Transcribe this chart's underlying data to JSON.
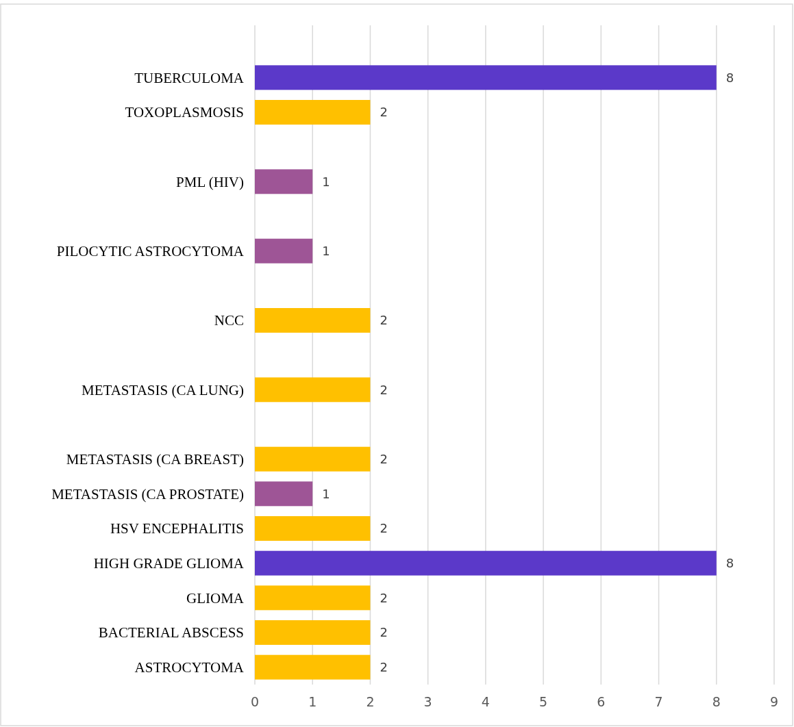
{
  "chart_data": {
    "type": "bar",
    "orientation": "horizontal",
    "categories": [
      "TUBERCULOMA",
      "TOXOPLASMOSIS",
      null,
      "PML (HIV)",
      null,
      "PILOCYTIC ASTROCYTOMA",
      null,
      "NCC",
      null,
      "METASTASIS (CA LUNG)",
      null,
      "METASTASIS (CA BREAST)",
      "METASTASIS (CA PROSTATE)",
      "HSV ENCEPHALITIS",
      "HIGH GRADE GLIOMA",
      "GLIOMA",
      "BACTERIAL ABSCESS",
      "ASTROCYTOMA"
    ],
    "values": [
      8,
      2,
      null,
      1,
      null,
      1,
      null,
      2,
      null,
      2,
      null,
      2,
      1,
      2,
      8,
      2,
      2,
      2
    ],
    "colors": [
      "#5b39c9",
      "#ffc000",
      null,
      "#9e5596",
      null,
      "#9e5596",
      null,
      "#ffc000",
      null,
      "#ffc000",
      null,
      "#ffc000",
      "#9e5596",
      "#ffc000",
      "#5b39c9",
      "#ffc000",
      "#ffc000",
      "#ffc000"
    ],
    "xlim": [
      0,
      9
    ],
    "xticks": [
      0,
      1,
      2,
      3,
      4,
      5,
      6,
      7,
      8,
      9
    ],
    "grid": "x",
    "data_labels": true
  }
}
